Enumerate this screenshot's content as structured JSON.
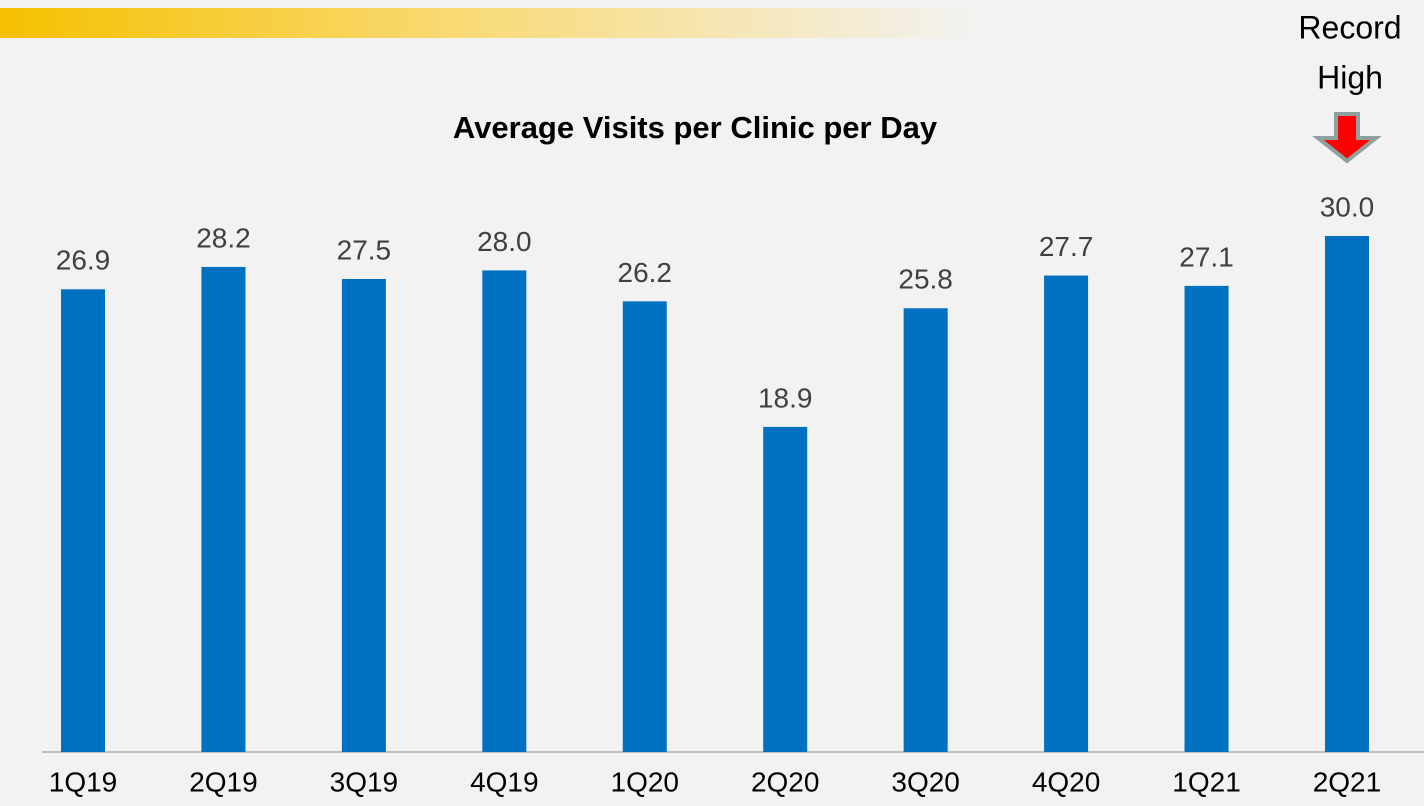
{
  "chart_data": {
    "type": "bar",
    "title": "Average Visits per Clinic per Day",
    "categories": [
      "1Q19",
      "2Q19",
      "3Q19",
      "4Q19",
      "1Q20",
      "2Q20",
      "3Q20",
      "4Q20",
      "1Q21",
      "2Q21"
    ],
    "values": [
      26.9,
      28.2,
      27.5,
      28.0,
      26.2,
      18.9,
      25.8,
      27.7,
      27.1,
      30.0
    ],
    "value_labels": [
      "26.9",
      "28.2",
      "27.5",
      "28.0",
      "26.2",
      "18.9",
      "25.8",
      "27.7",
      "27.1",
      "30.0"
    ],
    "color": "#0070c0",
    "ylim": [
      0,
      30
    ],
    "annotation": [
      "Record",
      "High"
    ]
  }
}
